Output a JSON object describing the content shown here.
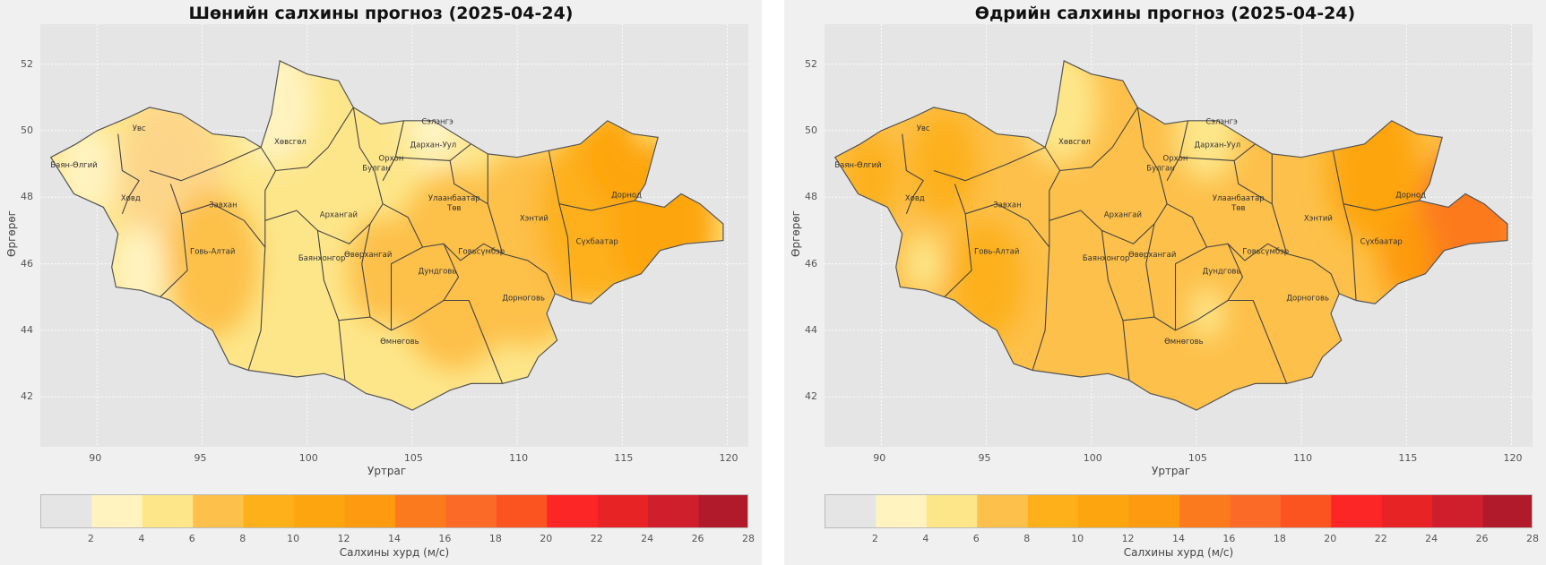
{
  "panels": [
    {
      "id": "night",
      "title": "Шөнийн салхины прогноз (2025-04-24)",
      "xlabel": "Уртраг",
      "ylabel": "Өргөрөг",
      "base_color": "#fde68a",
      "blobs": [
        {
          "lon": 93.5,
          "lat": 48.5,
          "r": 2.5,
          "color": "#fdd58a"
        },
        {
          "lon": 95.5,
          "lat": 46.0,
          "r": 2.2,
          "color": "#fdc04a"
        },
        {
          "lon": 103.5,
          "lat": 45.8,
          "r": 1.6,
          "color": "#fdc04a"
        },
        {
          "lon": 107.0,
          "lat": 45.8,
          "r": 3.0,
          "color": "#fdc04a"
        },
        {
          "lon": 110.5,
          "lat": 46.5,
          "r": 3.0,
          "color": "#fdc04a"
        },
        {
          "lon": 113.8,
          "lat": 47.5,
          "r": 2.8,
          "color": "#fdb01a"
        },
        {
          "lon": 114.5,
          "lat": 49.3,
          "r": 1.4,
          "color": "#fda50f"
        },
        {
          "lon": 117.0,
          "lat": 47.2,
          "r": 2.5,
          "color": "#fda50f"
        },
        {
          "lon": 98.5,
          "lat": 50.8,
          "r": 1.8,
          "color": "#fff3c0"
        },
        {
          "lon": 89.5,
          "lat": 48.8,
          "r": 1.4,
          "color": "#fff3c0"
        },
        {
          "lon": 92.0,
          "lat": 45.8,
          "r": 1.3,
          "color": "#fff3c0"
        },
        {
          "lon": 106.0,
          "lat": 50.2,
          "r": 1.3,
          "color": "#fff3c0"
        }
      ]
    },
    {
      "id": "day",
      "title": "Өдрийн салхины прогноз (2025-04-24)",
      "xlabel": "Уртраг",
      "ylabel": "Өргөрөг",
      "base_color": "#fdc04a",
      "blobs": [
        {
          "lon": 98.5,
          "lat": 50.8,
          "r": 1.8,
          "color": "#fde68a"
        },
        {
          "lon": 105.5,
          "lat": 50.0,
          "r": 1.5,
          "color": "#fde68a"
        },
        {
          "lon": 93.0,
          "lat": 49.0,
          "r": 1.6,
          "color": "#fdb01a"
        },
        {
          "lon": 89.5,
          "lat": 48.6,
          "r": 1.3,
          "color": "#fdb01a"
        },
        {
          "lon": 95.0,
          "lat": 45.5,
          "r": 1.8,
          "color": "#fdb01a"
        },
        {
          "lon": 113.5,
          "lat": 48.8,
          "r": 2.2,
          "color": "#fda50f"
        },
        {
          "lon": 118.0,
          "lat": 47.0,
          "r": 2.6,
          "color": "#fc7a1e"
        },
        {
          "lon": 115.0,
          "lat": 46.2,
          "r": 1.3,
          "color": "#fd9a10"
        },
        {
          "lon": 105.5,
          "lat": 44.5,
          "r": 0.8,
          "color": "#fde68a"
        },
        {
          "lon": 92.0,
          "lat": 46.0,
          "r": 0.9,
          "color": "#fde68a"
        }
      ]
    }
  ],
  "map": {
    "x_ticks": [
      90,
      95,
      100,
      105,
      110,
      115,
      120
    ],
    "y_ticks": [
      42,
      44,
      46,
      48,
      50,
      52
    ],
    "xlim": [
      87.3,
      121.0
    ],
    "ylim": [
      40.5,
      53.2
    ],
    "outline": [
      [
        87.8,
        49.2
      ],
      [
        89.0,
        49.6
      ],
      [
        90.0,
        50.0
      ],
      [
        91.5,
        50.4
      ],
      [
        92.5,
        50.7
      ],
      [
        94.0,
        50.5
      ],
      [
        95.5,
        49.9
      ],
      [
        97.0,
        49.8
      ],
      [
        97.8,
        49.5
      ],
      [
        98.3,
        50.5
      ],
      [
        98.7,
        52.1
      ],
      [
        100.0,
        51.7
      ],
      [
        101.5,
        51.5
      ],
      [
        102.2,
        50.7
      ],
      [
        103.5,
        50.2
      ],
      [
        104.6,
        50.3
      ],
      [
        106.0,
        50.3
      ],
      [
        107.8,
        49.6
      ],
      [
        108.6,
        49.3
      ],
      [
        110.0,
        49.2
      ],
      [
        111.5,
        49.4
      ],
      [
        113.0,
        49.6
      ],
      [
        114.3,
        50.3
      ],
      [
        115.5,
        49.9
      ],
      [
        116.7,
        49.8
      ],
      [
        116.1,
        48.4
      ],
      [
        115.6,
        47.9
      ],
      [
        117.0,
        47.7
      ],
      [
        117.8,
        48.1
      ],
      [
        118.7,
        47.8
      ],
      [
        119.8,
        47.2
      ],
      [
        119.8,
        46.7
      ],
      [
        118.0,
        46.6
      ],
      [
        116.8,
        46.4
      ],
      [
        115.9,
        45.7
      ],
      [
        114.6,
        45.4
      ],
      [
        113.5,
        44.8
      ],
      [
        112.6,
        44.9
      ],
      [
        111.8,
        45.1
      ],
      [
        111.4,
        44.5
      ],
      [
        111.9,
        43.7
      ],
      [
        111.0,
        43.2
      ],
      [
        110.5,
        42.6
      ],
      [
        109.3,
        42.4
      ],
      [
        107.8,
        42.4
      ],
      [
        106.8,
        42.2
      ],
      [
        105.0,
        41.6
      ],
      [
        104.0,
        41.9
      ],
      [
        102.8,
        42.1
      ],
      [
        101.8,
        42.5
      ],
      [
        100.8,
        42.7
      ],
      [
        99.5,
        42.6
      ],
      [
        97.2,
        42.8
      ],
      [
        96.3,
        43.0
      ],
      [
        95.5,
        44.0
      ],
      [
        94.7,
        44.3
      ],
      [
        93.5,
        44.9
      ],
      [
        92.1,
        45.2
      ],
      [
        90.9,
        45.3
      ],
      [
        90.7,
        45.9
      ],
      [
        91.0,
        46.9
      ],
      [
        90.3,
        47.7
      ],
      [
        88.9,
        48.1
      ],
      [
        87.8,
        49.2
      ]
    ],
    "borders": [
      [
        [
          91.0,
          49.9
        ],
        [
          91.2,
          48.8
        ],
        [
          92.0,
          48.5
        ],
        [
          91.5,
          48.0
        ],
        [
          91.2,
          47.5
        ]
      ],
      [
        [
          92.5,
          48.8
        ],
        [
          94.0,
          48.5
        ],
        [
          96.0,
          49.0
        ],
        [
          97.8,
          49.5
        ]
      ],
      [
        [
          93.5,
          48.4
        ],
        [
          94.0,
          47.5
        ],
        [
          94.3,
          45.8
        ],
        [
          93.0,
          45.0
        ]
      ],
      [
        [
          94.0,
          47.5
        ],
        [
          95.5,
          47.8
        ],
        [
          97.0,
          47.3
        ],
        [
          98.0,
          46.5
        ]
      ],
      [
        [
          97.8,
          49.5
        ],
        [
          98.5,
          48.8
        ],
        [
          100.0,
          48.9
        ],
        [
          101.0,
          49.5
        ],
        [
          102.2,
          50.7
        ]
      ],
      [
        [
          98.5,
          48.8
        ],
        [
          98.0,
          48.2
        ],
        [
          98.0,
          46.5
        ],
        [
          97.8,
          44.0
        ],
        [
          97.2,
          42.8
        ]
      ],
      [
        [
          98.0,
          47.3
        ],
        [
          99.5,
          47.6
        ],
        [
          100.5,
          47.0
        ],
        [
          102.0,
          46.6
        ],
        [
          103.0,
          47.2
        ],
        [
          103.6,
          47.8
        ]
      ],
      [
        [
          100.5,
          47.0
        ],
        [
          100.8,
          45.5
        ],
        [
          101.5,
          44.3
        ],
        [
          101.8,
          42.5
        ]
      ],
      [
        [
          101.5,
          44.3
        ],
        [
          103.0,
          44.4
        ],
        [
          104.0,
          44.0
        ],
        [
          105.0,
          44.3
        ],
        [
          106.5,
          44.9
        ],
        [
          107.7,
          44.9
        ],
        [
          109.3,
          42.4
        ]
      ],
      [
        [
          102.2,
          50.7
        ],
        [
          102.5,
          49.5
        ],
        [
          103.2,
          48.8
        ],
        [
          103.6,
          47.8
        ],
        [
          104.8,
          47.4
        ],
        [
          105.5,
          46.5
        ],
        [
          106.5,
          46.6
        ],
        [
          107.3,
          46.1
        ],
        [
          108.4,
          46.6
        ],
        [
          109.3,
          46.3
        ],
        [
          110.5,
          46.1
        ],
        [
          111.4,
          45.7
        ],
        [
          111.8,
          45.1
        ]
      ],
      [
        [
          104.6,
          50.3
        ],
        [
          104.2,
          49.2
        ],
        [
          103.6,
          48.5
        ]
      ],
      [
        [
          104.2,
          49.2
        ],
        [
          106.8,
          49.1
        ],
        [
          107.8,
          49.6
        ]
      ],
      [
        [
          106.8,
          49.1
        ],
        [
          107.0,
          48.4
        ],
        [
          108.6,
          47.8
        ],
        [
          109.3,
          46.3
        ]
      ],
      [
        [
          108.6,
          49.3
        ],
        [
          108.6,
          47.8
        ]
      ],
      [
        [
          111.5,
          49.4
        ],
        [
          112.0,
          47.8
        ],
        [
          112.4,
          46.8
        ],
        [
          112.6,
          44.9
        ]
      ],
      [
        [
          112.0,
          47.8
        ],
        [
          113.5,
          47.6
        ],
        [
          115.6,
          47.9
        ]
      ],
      [
        [
          103.0,
          47.2
        ],
        [
          102.6,
          46.0
        ],
        [
          103.0,
          44.4
        ]
      ],
      [
        [
          105.5,
          46.5
        ],
        [
          104.0,
          46.0
        ],
        [
          104.0,
          44.0
        ]
      ],
      [
        [
          106.5,
          46.6
        ],
        [
          107.2,
          45.6
        ],
        [
          106.5,
          44.9
        ]
      ]
    ],
    "provinces": [
      {
        "name": "Увс",
        "lon": 92.0,
        "lat": 50.0
      },
      {
        "name": "Баян-Өлгий",
        "lon": 88.9,
        "lat": 48.9
      },
      {
        "name": "Ховд",
        "lon": 91.6,
        "lat": 47.9
      },
      {
        "name": "Завхан",
        "lon": 96.0,
        "lat": 47.7
      },
      {
        "name": "Хөвсгөл",
        "lon": 99.2,
        "lat": 49.6
      },
      {
        "name": "Архангай",
        "lon": 101.5,
        "lat": 47.4
      },
      {
        "name": "Булган",
        "lon": 103.3,
        "lat": 48.8
      },
      {
        "name": "Орхон",
        "lon": 104.0,
        "lat": 49.1
      },
      {
        "name": "Сэлэнгэ",
        "lon": 106.2,
        "lat": 50.2
      },
      {
        "name": "Дархан-Уул",
        "lon": 106.0,
        "lat": 49.5
      },
      {
        "name": "Улаанбаатар",
        "lon": 107.0,
        "lat": 47.9
      },
      {
        "name": "Төв",
        "lon": 107.0,
        "lat": 47.6
      },
      {
        "name": "Хэнтий",
        "lon": 110.8,
        "lat": 47.3
      },
      {
        "name": "Дорнод",
        "lon": 115.2,
        "lat": 48.0
      },
      {
        "name": "Сүхбаатар",
        "lon": 113.8,
        "lat": 46.6
      },
      {
        "name": "Говь-Алтай",
        "lon": 95.5,
        "lat": 46.3
      },
      {
        "name": "Баянхонгор",
        "lon": 100.7,
        "lat": 46.1
      },
      {
        "name": "Өвөрхангай",
        "lon": 102.9,
        "lat": 46.2
      },
      {
        "name": "Говьсүмбэр",
        "lon": 108.3,
        "lat": 46.3
      },
      {
        "name": "Дундговь",
        "lon": 106.2,
        "lat": 45.7
      },
      {
        "name": "Дорноговь",
        "lon": 110.3,
        "lat": 44.9
      },
      {
        "name": "Өмнөговь",
        "lon": 104.4,
        "lat": 43.6
      }
    ]
  },
  "colorbar": {
    "label": "Салхины хурд (м/с)",
    "boundaries": [
      0,
      2,
      4,
      6,
      8,
      10,
      12,
      14,
      16,
      18,
      20,
      22,
      24,
      26,
      28
    ],
    "tick_labels": [
      "2",
      "4",
      "6",
      "8",
      "10",
      "12",
      "14",
      "16",
      "18",
      "20",
      "22",
      "24",
      "26",
      "28"
    ],
    "colors": [
      "#e5e5e5",
      "#fff3c0",
      "#fde68a",
      "#fdc04a",
      "#fdb01a",
      "#fda50f",
      "#fd9a10",
      "#fc7a1e",
      "#fb6a26",
      "#fb5421",
      "#fc2626",
      "#e72326",
      "#cf1f2d",
      "#b11a2b"
    ]
  }
}
